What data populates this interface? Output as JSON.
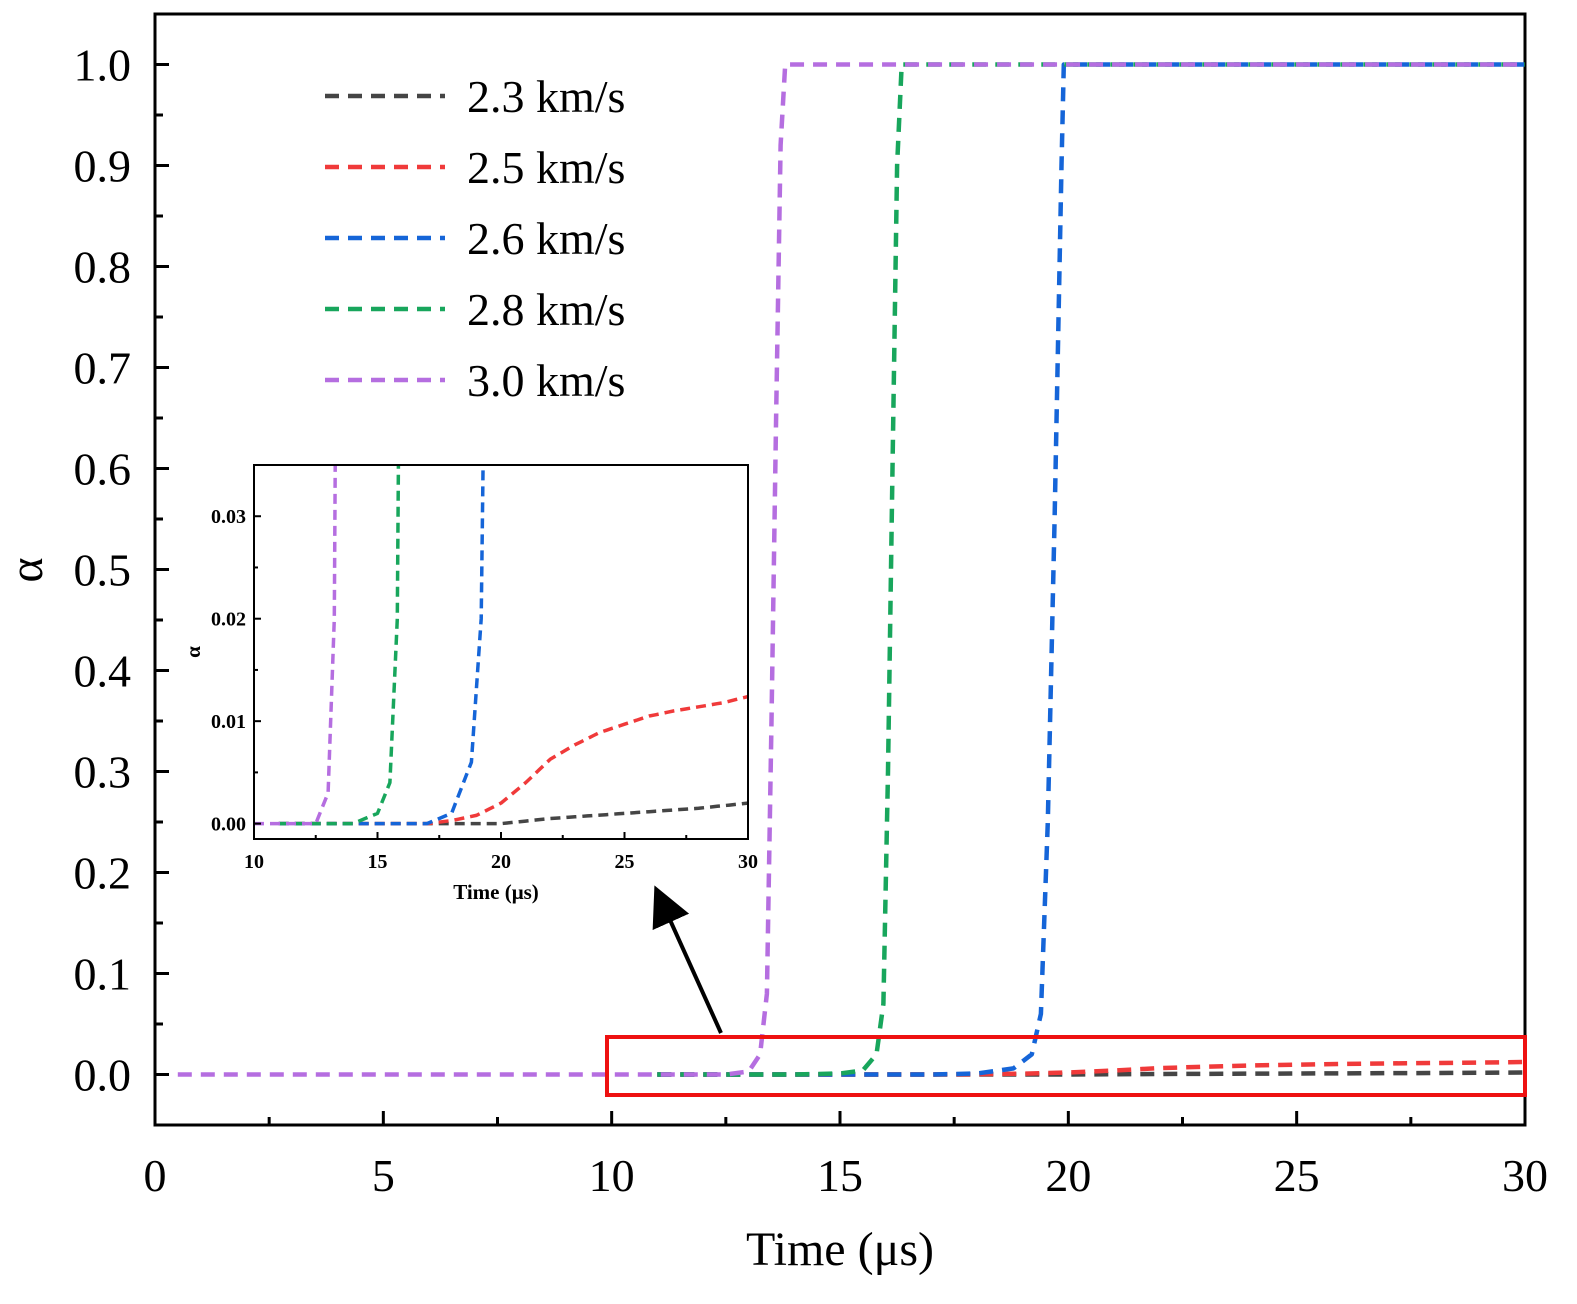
{
  "chart_data": {
    "type": "line",
    "title": "",
    "xlabel": "Time (μs)",
    "ylabel": "α",
    "xlim": [
      0,
      30
    ],
    "ylim": [
      -0.05,
      1.05
    ],
    "xticks": [
      0,
      5,
      10,
      15,
      20,
      25,
      30
    ],
    "xtick_labels": [
      "0",
      "5",
      "10",
      "15",
      "20",
      "25",
      "30"
    ],
    "yticks": [
      0.0,
      0.1,
      0.2,
      0.3,
      0.4,
      0.5,
      0.6,
      0.7,
      0.8,
      0.9,
      1.0
    ],
    "ytick_labels": [
      "0.0",
      "0.1",
      "0.2",
      "0.3",
      "0.4",
      "0.5",
      "0.6",
      "0.7",
      "0.8",
      "0.9",
      "1.0"
    ],
    "legend_position": "top-left",
    "grid": false,
    "series": [
      {
        "name": "2.3 km/s",
        "color": "#454545",
        "x": [
          11,
          14,
          17,
          20,
          22,
          25,
          28,
          30
        ],
        "y": [
          0,
          0,
          0,
          0,
          0.0005,
          0.001,
          0.0015,
          0.002
        ]
      },
      {
        "name": "2.5 km/s",
        "color": "#f03a3a",
        "x": [
          11,
          14,
          17,
          18,
          19,
          20,
          21,
          22,
          23,
          24,
          25,
          26,
          27,
          28,
          29,
          30
        ],
        "y": [
          0,
          0,
          0,
          0.0003,
          0.0008,
          0.002,
          0.004,
          0.0063,
          0.0077,
          0.0089,
          0.0097,
          0.0105,
          0.011,
          0.0114,
          0.0118,
          0.0124
        ]
      },
      {
        "name": "2.6 km/s",
        "color": "#1565d8",
        "x": [
          11,
          14,
          17,
          18,
          18.8,
          19.2,
          19.4,
          19.55,
          19.7,
          19.85,
          19.9,
          30
        ],
        "y": [
          0,
          0,
          0,
          0.001,
          0.006,
          0.02,
          0.06,
          0.25,
          0.55,
          0.9,
          1.0,
          1.0
        ]
      },
      {
        "name": "2.8 km/s",
        "color": "#18a65c",
        "x": [
          11,
          14,
          15,
          15.5,
          15.8,
          15.95,
          16.05,
          16.15,
          16.25,
          16.35,
          30
        ],
        "y": [
          0,
          0,
          0.001,
          0.004,
          0.02,
          0.07,
          0.3,
          0.6,
          0.9,
          1.0,
          1.0
        ]
      },
      {
        "name": "3.0 km/s",
        "color": "#b56ee0",
        "x": [
          0.5,
          12.5,
          13.0,
          13.25,
          13.4,
          13.5,
          13.6,
          13.7,
          13.8,
          30
        ],
        "y": [
          0,
          0,
          0.003,
          0.02,
          0.08,
          0.35,
          0.65,
          0.92,
          1.0,
          1.0
        ]
      }
    ],
    "inset": {
      "xlabel": "Time (μs)",
      "ylabel": "α",
      "xlim": [
        10,
        30
      ],
      "ylim": [
        -0.0015,
        0.035
      ],
      "xticks": [
        10,
        15,
        20,
        25,
        30
      ],
      "xtick_labels": [
        "10",
        "15",
        "20",
        "25",
        "30"
      ],
      "yticks": [
        0.0,
        0.01,
        0.02,
        0.03
      ],
      "ytick_labels": [
        "0.00",
        "0.01",
        "0.02",
        "0.03"
      ]
    },
    "annotation": "Red rectangle marks the zoomed region (t = 10–30 μs, α ≈ 0) shown in the inset; arrow points to the inset."
  }
}
